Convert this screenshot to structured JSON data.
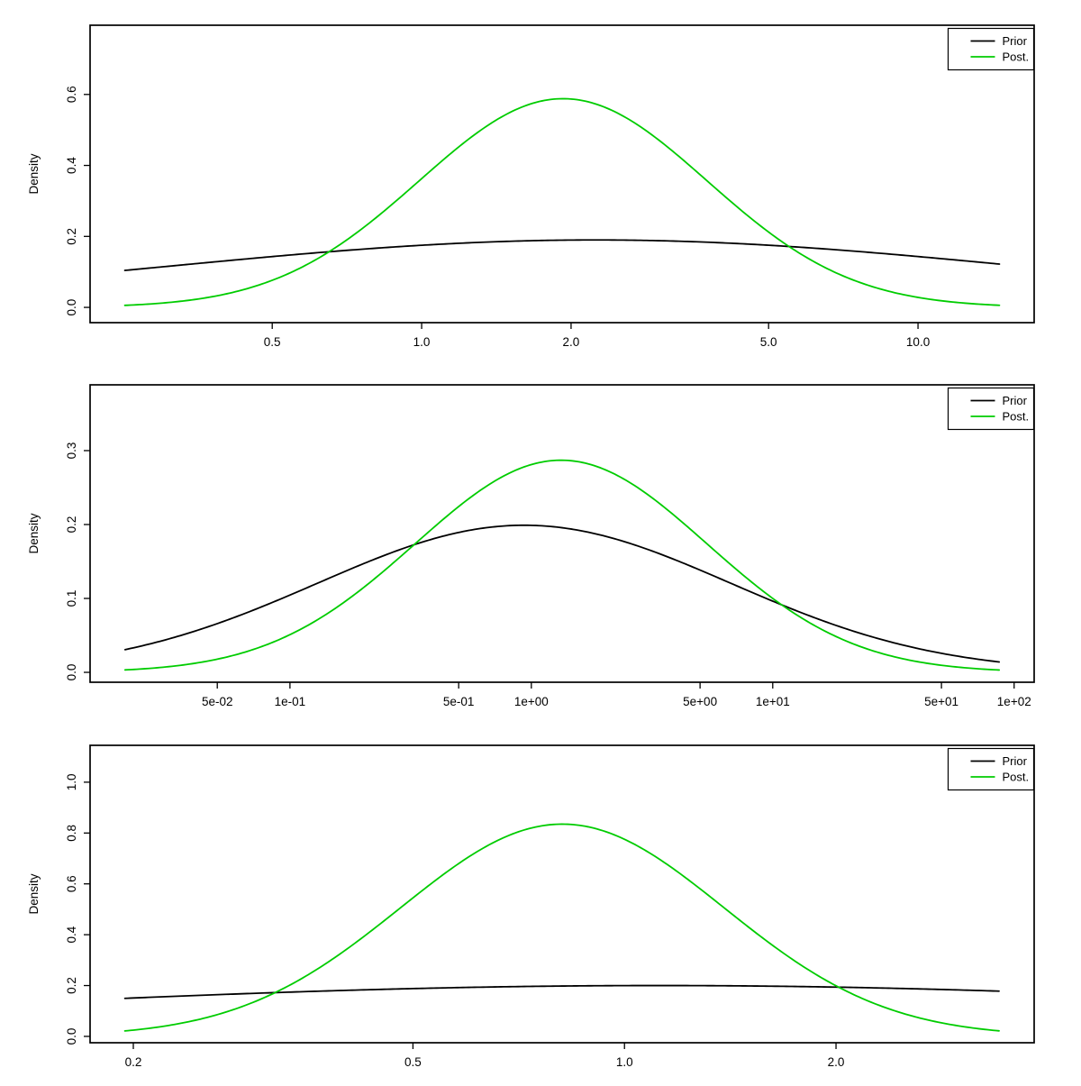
{
  "figure": {
    "background": "#ffffff",
    "ylabel": "Density",
    "legend_labels": {
      "prior": "Prior",
      "posterior": "Post."
    }
  },
  "colors": {
    "prior_line": "#000000",
    "posterior_line": "#00CC00",
    "axis": "#000000",
    "legend_border": "#000000"
  },
  "chart_data": [
    {
      "type": "line",
      "title": "",
      "xlabel": "",
      "ylabel": "Density",
      "x_scale": "log10",
      "grid": false,
      "legend_position": "topright",
      "legend_entries": [
        "Prior",
        "Post."
      ],
      "x_tick_values": [
        0.5,
        1.0,
        2.0,
        5.0,
        10.0
      ],
      "x_tick_labels": [
        "0.5",
        "1.0",
        "2.0",
        "5.0",
        "10.0"
      ],
      "y_tick_values": [
        0.0,
        0.2,
        0.4,
        0.6
      ],
      "y_tick_labels": [
        "0.0",
        "0.2",
        "0.4",
        "0.6"
      ],
      "x_range_log10": [
        -0.668,
        1.234
      ],
      "y_range": [
        -0.043,
        0.795
      ],
      "data_range_log10": [
        -0.598,
        1.164
      ],
      "series": [
        {
          "name": "Prior",
          "color": "#000000",
          "curve": "gaussian_in_log10x",
          "amp": 0.19,
          "mu_log10": 0.35,
          "sigma_log10": 0.865,
          "peak": {
            "x": 2.2,
            "density": 0.19
          },
          "endpoints": {
            "left_density": 0.104,
            "right_density": 0.12
          }
        },
        {
          "name": "Post.",
          "color": "#00CC00",
          "curve": "gaussian_in_log10x",
          "amp": 0.588,
          "mu_log10": 0.285,
          "sigma_log10": 0.29,
          "peak": {
            "x": 1.93,
            "density": 0.59
          },
          "endpoints": {
            "left_density": 0.005,
            "right_density": 0.005
          }
        }
      ]
    },
    {
      "type": "line",
      "title": "",
      "xlabel": "",
      "ylabel": "Density",
      "x_scale": "log10",
      "grid": false,
      "legend_position": "topright",
      "legend_entries": [
        "Prior",
        "Post."
      ],
      "x_tick_values": [
        0.05,
        0.1,
        0.5,
        1,
        5,
        10,
        50,
        100
      ],
      "x_tick_labels": [
        "5e-02",
        "1e-01",
        "5e-01",
        "1e+00",
        "5e+00",
        "1e+01",
        "5e+01",
        "1e+02"
      ],
      "y_tick_values": [
        0.0,
        0.1,
        0.2,
        0.3
      ],
      "y_tick_labels": [
        "0.0",
        "0.1",
        "0.2",
        "0.3"
      ],
      "x_range_log10": [
        -1.828,
        2.083
      ],
      "y_range": [
        -0.0134,
        0.389
      ],
      "data_range_log10": [
        -1.683,
        1.938
      ],
      "series": [
        {
          "name": "Prior",
          "color": "#000000",
          "curve": "gaussian_in_log10x",
          "amp": 0.199,
          "mu_log10": -0.03,
          "sigma_log10": 0.855,
          "peak": {
            "x": 0.93,
            "density": 0.2
          },
          "endpoints": {
            "left_density": 0.03,
            "right_density": 0.015
          }
        },
        {
          "name": "Post.",
          "color": "#00CC00",
          "curve": "gaussian_in_log10x",
          "amp": 0.287,
          "mu_log10": 0.123,
          "sigma_log10": 0.604,
          "peak": {
            "x": 1.33,
            "density": 0.287
          },
          "endpoints": {
            "left_density": 0.003,
            "right_density": 0.003
          }
        }
      ]
    },
    {
      "type": "line",
      "title": "",
      "xlabel": "",
      "ylabel": "Density",
      "x_scale": "log10",
      "grid": false,
      "legend_position": "topright",
      "legend_entries": [
        "Prior",
        "Post."
      ],
      "x_tick_values": [
        0.2,
        0.5,
        1.0,
        2.0
      ],
      "x_tick_labels": [
        "0.2",
        "0.5",
        "1.0",
        "2.0"
      ],
      "y_tick_values": [
        0.0,
        0.2,
        0.4,
        0.6,
        0.8,
        1.0
      ],
      "y_tick_labels": [
        "0.0",
        "0.2",
        "0.4",
        "0.6",
        "0.8",
        "1.0"
      ],
      "x_range_log10": [
        -0.7605,
        0.583
      ],
      "y_range": [
        -0.025,
        1.145
      ],
      "data_range_log10": [
        -0.711,
        0.533
      ],
      "series": [
        {
          "name": "Prior",
          "color": "#000000",
          "curve": "gaussian_in_log10x",
          "amp": 0.2,
          "mu_log10": 0.05,
          "sigma_log10": 1.0,
          "peak": {
            "x": 1.12,
            "density": 0.2
          },
          "endpoints": {
            "left_density": 0.15,
            "right_density": 0.178
          }
        },
        {
          "name": "Post.",
          "color": "#00CC00",
          "curve": "gaussian_in_log10x",
          "amp": 0.835,
          "mu_log10": -0.0885,
          "sigma_log10": 0.23,
          "peak": {
            "x": 0.815,
            "density": 0.835
          },
          "endpoints": {
            "left_density": 0.021,
            "right_density": 0.021
          }
        }
      ]
    }
  ]
}
